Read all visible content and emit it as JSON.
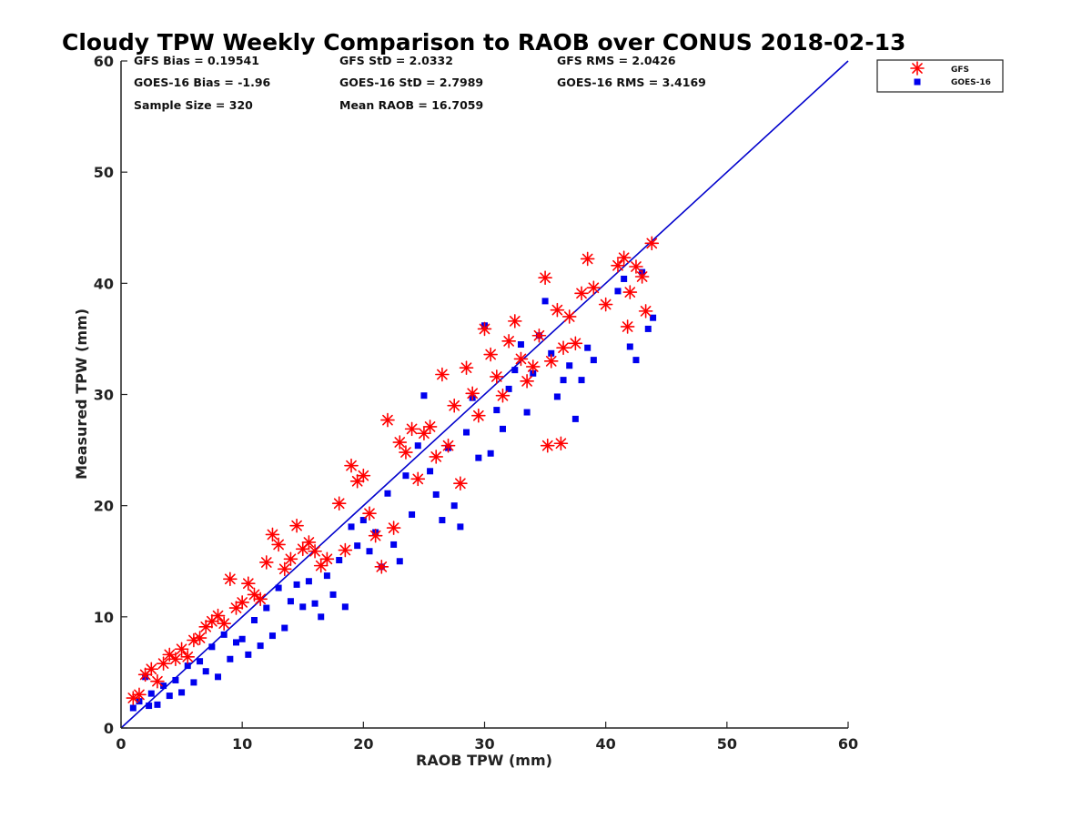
{
  "chart_data": {
    "type": "scatter",
    "title": "Cloudy TPW Weekly Comparison to RAOB over CONUS 2018-02-13",
    "xlabel": "RAOB TPW (mm)",
    "ylabel": "Measured TPW (mm)",
    "xlim": [
      0,
      60
    ],
    "ylim": [
      0,
      60
    ],
    "xticks": [
      "0",
      "10",
      "20",
      "30",
      "40",
      "50",
      "60"
    ],
    "yticks": [
      "0",
      "10",
      "20",
      "30",
      "40",
      "50",
      "60"
    ],
    "grid": false,
    "legend_position": "top-right outside",
    "reference_line": {
      "type": "identity",
      "color": "#0000cc"
    },
    "stats": [
      "GFS Bias = 0.19541",
      "GFS StD = 2.0332",
      "GFS RMS = 2.0426",
      "GOES-16 Bias = -1.96",
      "GOES-16 StD = 2.7989",
      "GOES-16 RMS = 3.4169",
      "Sample Size = 320",
      "Mean RAOB = 16.7059"
    ],
    "series": [
      {
        "name": "GFS",
        "marker": "asterisk",
        "color": "#ff0000",
        "points": [
          [
            1,
            2.7
          ],
          [
            1.5,
            3.0
          ],
          [
            2,
            4.8
          ],
          [
            2.5,
            5.3
          ],
          [
            3,
            4.2
          ],
          [
            3.5,
            5.8
          ],
          [
            4,
            6.6
          ],
          [
            4.5,
            6.2
          ],
          [
            5,
            7.1
          ],
          [
            5.5,
            6.4
          ],
          [
            6,
            7.9
          ],
          [
            6.5,
            8.1
          ],
          [
            7,
            9.1
          ],
          [
            7.5,
            9.6
          ],
          [
            8,
            10.1
          ],
          [
            8.5,
            9.4
          ],
          [
            9,
            13.4
          ],
          [
            9.5,
            10.8
          ],
          [
            10,
            11.3
          ],
          [
            10.5,
            13.0
          ],
          [
            11,
            12.0
          ],
          [
            11.5,
            11.6
          ],
          [
            12,
            14.9
          ],
          [
            12.5,
            17.4
          ],
          [
            13,
            16.5
          ],
          [
            13.5,
            14.3
          ],
          [
            14,
            15.2
          ],
          [
            14.5,
            18.2
          ],
          [
            15,
            16.1
          ],
          [
            15.5,
            16.7
          ],
          [
            16,
            15.9
          ],
          [
            16.5,
            14.6
          ],
          [
            17,
            15.2
          ],
          [
            18,
            20.2
          ],
          [
            18.5,
            16.0
          ],
          [
            19,
            23.6
          ],
          [
            19.5,
            22.2
          ],
          [
            20,
            22.7
          ],
          [
            20.5,
            19.3
          ],
          [
            21,
            17.3
          ],
          [
            21.5,
            14.5
          ],
          [
            22,
            27.7
          ],
          [
            22.5,
            18.0
          ],
          [
            23,
            25.7
          ],
          [
            23.5,
            24.8
          ],
          [
            24,
            26.9
          ],
          [
            24.5,
            22.4
          ],
          [
            25,
            26.5
          ],
          [
            25.5,
            27.1
          ],
          [
            26,
            24.4
          ],
          [
            26.5,
            31.8
          ],
          [
            27,
            25.4
          ],
          [
            27.5,
            29.0
          ],
          [
            28,
            22.0
          ],
          [
            28.5,
            32.4
          ],
          [
            29,
            30.1
          ],
          [
            29.5,
            28.1
          ],
          [
            30,
            35.9
          ],
          [
            30.5,
            33.6
          ],
          [
            31,
            31.6
          ],
          [
            31.5,
            29.9
          ],
          [
            32,
            34.8
          ],
          [
            32.5,
            36.6
          ],
          [
            33,
            33.2
          ],
          [
            33.5,
            31.2
          ],
          [
            34,
            32.5
          ],
          [
            34.5,
            35.3
          ],
          [
            35,
            40.5
          ],
          [
            35.2,
            25.4
          ],
          [
            35.5,
            33.0
          ],
          [
            36,
            37.6
          ],
          [
            36.3,
            25.6
          ],
          [
            36.5,
            34.2
          ],
          [
            37,
            37.0
          ],
          [
            37.5,
            34.6
          ],
          [
            38,
            39.1
          ],
          [
            38.5,
            42.2
          ],
          [
            39,
            39.6
          ],
          [
            40,
            38.1
          ],
          [
            41,
            41.6
          ],
          [
            41.5,
            42.3
          ],
          [
            41.8,
            36.1
          ],
          [
            42,
            39.2
          ],
          [
            42.5,
            41.5
          ],
          [
            43,
            40.6
          ],
          [
            43.3,
            37.5
          ],
          [
            43.8,
            43.6
          ]
        ]
      },
      {
        "name": "GOES-16",
        "marker": "square",
        "color": "#0000ee",
        "points": [
          [
            1,
            1.8
          ],
          [
            1.5,
            2.4
          ],
          [
            2,
            4.6
          ],
          [
            2.3,
            2.0
          ],
          [
            2.5,
            3.1
          ],
          [
            3,
            2.1
          ],
          [
            3.5,
            3.8
          ],
          [
            4,
            2.9
          ],
          [
            4.5,
            4.3
          ],
          [
            5,
            3.2
          ],
          [
            5.5,
            5.6
          ],
          [
            6,
            4.1
          ],
          [
            6.5,
            6.0
          ],
          [
            7,
            5.1
          ],
          [
            7.5,
            7.3
          ],
          [
            8,
            4.6
          ],
          [
            8.5,
            8.4
          ],
          [
            9,
            6.2
          ],
          [
            9.5,
            7.7
          ],
          [
            10,
            8.0
          ],
          [
            10.5,
            6.6
          ],
          [
            11,
            9.7
          ],
          [
            11.5,
            7.4
          ],
          [
            12,
            10.8
          ],
          [
            12.5,
            8.3
          ],
          [
            13,
            12.6
          ],
          [
            13.5,
            9.0
          ],
          [
            14,
            11.4
          ],
          [
            14.5,
            12.9
          ],
          [
            15,
            10.9
          ],
          [
            15.5,
            13.2
          ],
          [
            16,
            11.2
          ],
          [
            16.5,
            10.0
          ],
          [
            17,
            13.7
          ],
          [
            17.5,
            12.0
          ],
          [
            18,
            15.1
          ],
          [
            18.5,
            10.9
          ],
          [
            19,
            18.1
          ],
          [
            19.5,
            16.4
          ],
          [
            20,
            18.7
          ],
          [
            20.5,
            15.9
          ],
          [
            21,
            17.6
          ],
          [
            21.5,
            14.5
          ],
          [
            22,
            21.1
          ],
          [
            22.5,
            16.5
          ],
          [
            23,
            15.0
          ],
          [
            23.5,
            22.7
          ],
          [
            24,
            19.2
          ],
          [
            24.5,
            25.4
          ],
          [
            25,
            29.9
          ],
          [
            25.5,
            23.1
          ],
          [
            26,
            21.0
          ],
          [
            26.5,
            18.7
          ],
          [
            27,
            25.2
          ],
          [
            27.5,
            20.0
          ],
          [
            28,
            18.1
          ],
          [
            28.5,
            26.6
          ],
          [
            29,
            29.7
          ],
          [
            29.5,
            24.3
          ],
          [
            30,
            36.2
          ],
          [
            30.5,
            24.7
          ],
          [
            31,
            28.6
          ],
          [
            31.5,
            26.9
          ],
          [
            32,
            30.5
          ],
          [
            32.5,
            32.2
          ],
          [
            33,
            34.5
          ],
          [
            33.5,
            28.4
          ],
          [
            34,
            31.9
          ],
          [
            34.5,
            35.3
          ],
          [
            35,
            38.4
          ],
          [
            35.5,
            33.7
          ],
          [
            36,
            29.8
          ],
          [
            36.5,
            31.3
          ],
          [
            37,
            32.6
          ],
          [
            37.5,
            27.8
          ],
          [
            38,
            31.3
          ],
          [
            38.5,
            34.2
          ],
          [
            39,
            33.1
          ],
          [
            41,
            39.3
          ],
          [
            41.5,
            40.4
          ],
          [
            42,
            34.3
          ],
          [
            42.5,
            33.1
          ],
          [
            43,
            41.0
          ],
          [
            43.5,
            35.9
          ],
          [
            43.9,
            36.9
          ]
        ]
      }
    ]
  }
}
